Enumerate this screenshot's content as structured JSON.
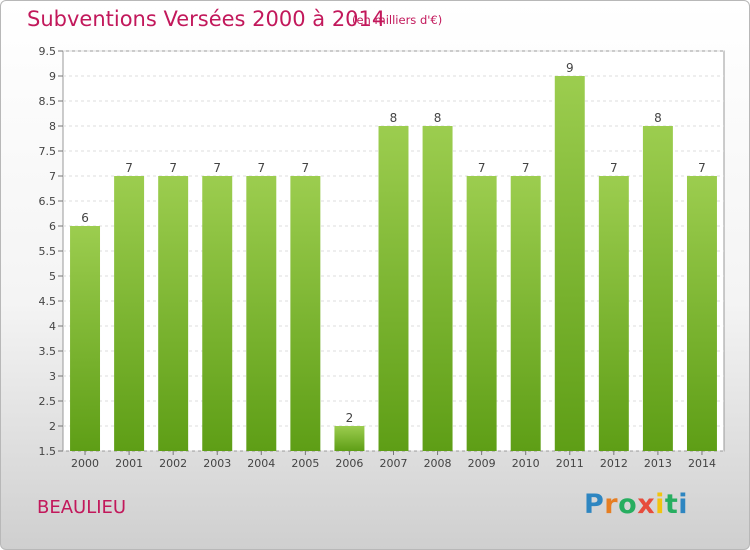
{
  "header": {
    "title": "Subventions Versées 2000 à 2014",
    "subtitle": "(en milliers d'€)"
  },
  "footer": {
    "place": "BEAULIEU",
    "logo": "Proxiti",
    "logo_colors": [
      "#2e86c1",
      "#e67e22",
      "#27ae60",
      "#e74c3c",
      "#f1c40f",
      "#27ae60",
      "#2e86c1"
    ]
  },
  "chart_data": {
    "type": "bar",
    "title": "Subventions Versées 2000 à 2014",
    "subtitle": "(en milliers d'€)",
    "xlabel": "",
    "ylabel": "",
    "categories": [
      "2000",
      "2001",
      "2002",
      "2003",
      "2004",
      "2005",
      "2006",
      "2007",
      "2008",
      "2009",
      "2010",
      "2011",
      "2012",
      "2013",
      "2014"
    ],
    "values": [
      6,
      7,
      7,
      7,
      7,
      7,
      2,
      8,
      8,
      7,
      7,
      9,
      7,
      8,
      7
    ],
    "data_labels": [
      "6",
      "7",
      "7",
      "7",
      "7",
      "7",
      "2",
      "8",
      "8",
      "7",
      "7",
      "9",
      "7",
      "8",
      "7"
    ],
    "ylim": [
      1.5,
      9.5
    ],
    "yticks": [
      "1.5",
      "2",
      "2.5",
      "3",
      "3.5",
      "4",
      "4.5",
      "5",
      "5.5",
      "6",
      "6.5",
      "7",
      "7.5",
      "8",
      "8.5",
      "9",
      "9.5"
    ],
    "grid": true,
    "bar_color_top": "#9ccd4f",
    "bar_color_bottom": "#5e9e16"
  }
}
